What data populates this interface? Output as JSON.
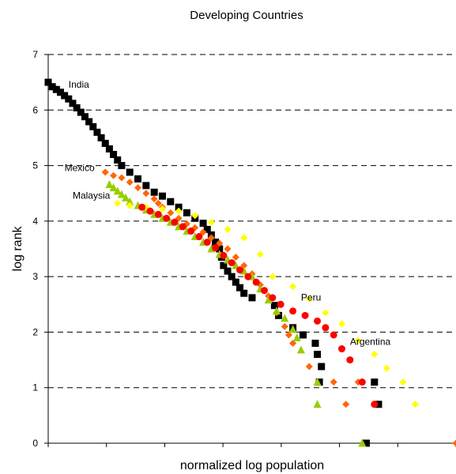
{
  "chart_data": {
    "type": "scatter",
    "title": "Developing Countries",
    "xlabel": "normalized log population",
    "ylabel": "log rank",
    "xlim": [
      0,
      1
    ],
    "ylim": [
      0,
      7
    ],
    "yticks": [
      "0",
      "1",
      "2",
      "3",
      "4",
      "5",
      "6",
      "7"
    ],
    "grid": "horizontal dashed",
    "legend": "none",
    "annotations": [
      {
        "text": "India",
        "x": 0.05,
        "y": 6.4
      },
      {
        "text": "Mexico",
        "x": 0.04,
        "y": 4.9
      },
      {
        "text": "Malaysia",
        "x": 0.06,
        "y": 4.4
      },
      {
        "text": "Peru",
        "x": 0.62,
        "y": 2.57
      },
      {
        "text": "Argentina",
        "x": 0.74,
        "y": 1.77
      }
    ],
    "series": [
      {
        "color": "#000000",
        "marker": "square",
        "points": [
          [
            0.0,
            6.5
          ],
          [
            0.01,
            6.42
          ],
          [
            0.02,
            6.37
          ],
          [
            0.03,
            6.32
          ],
          [
            0.04,
            6.26
          ],
          [
            0.05,
            6.2
          ],
          [
            0.06,
            6.12
          ],
          [
            0.07,
            6.04
          ],
          [
            0.08,
            5.96
          ],
          [
            0.09,
            5.88
          ],
          [
            0.1,
            5.79
          ],
          [
            0.11,
            5.7
          ],
          [
            0.12,
            5.6
          ],
          [
            0.13,
            5.5
          ],
          [
            0.14,
            5.4
          ],
          [
            0.15,
            5.3
          ],
          [
            0.16,
            5.2
          ],
          [
            0.17,
            5.1
          ],
          [
            0.18,
            5.0
          ],
          [
            0.2,
            4.88
          ],
          [
            0.22,
            4.76
          ],
          [
            0.24,
            4.64
          ],
          [
            0.26,
            4.52
          ],
          [
            0.28,
            4.45
          ],
          [
            0.3,
            4.35
          ],
          [
            0.32,
            4.25
          ],
          [
            0.34,
            4.15
          ],
          [
            0.36,
            4.05
          ],
          [
            0.38,
            3.96
          ],
          [
            0.39,
            3.85
          ],
          [
            0.4,
            3.75
          ],
          [
            0.41,
            3.62
          ],
          [
            0.42,
            3.5
          ],
          [
            0.425,
            3.35
          ],
          [
            0.43,
            3.2
          ],
          [
            0.44,
            3.1
          ],
          [
            0.45,
            3.0
          ],
          [
            0.46,
            2.9
          ],
          [
            0.47,
            2.8
          ],
          [
            0.48,
            2.7
          ],
          [
            0.5,
            2.62
          ],
          [
            0.6,
            2.08
          ],
          [
            0.625,
            1.95
          ],
          [
            0.655,
            1.8
          ],
          [
            0.66,
            1.6
          ],
          [
            0.67,
            1.38
          ],
          [
            0.665,
            1.1
          ],
          [
            0.78,
            0.0
          ],
          [
            0.8,
            1.1
          ],
          [
            0.81,
            0.7
          ],
          [
            0.565,
            2.3
          ],
          [
            0.555,
            2.48
          ]
        ]
      },
      {
        "color": "#ff6600",
        "marker": "diamond",
        "points": [
          [
            0.14,
            4.88
          ],
          [
            0.16,
            4.82
          ],
          [
            0.18,
            4.78
          ],
          [
            0.2,
            4.7
          ],
          [
            0.22,
            4.6
          ],
          [
            0.24,
            4.5
          ],
          [
            0.26,
            4.4
          ],
          [
            0.27,
            4.32
          ],
          [
            0.28,
            4.25
          ],
          [
            0.3,
            4.15
          ],
          [
            0.32,
            4.05
          ],
          [
            0.34,
            3.95
          ],
          [
            0.36,
            3.88
          ],
          [
            0.38,
            3.8
          ],
          [
            0.4,
            3.7
          ],
          [
            0.42,
            3.6
          ],
          [
            0.44,
            3.5
          ],
          [
            0.46,
            3.35
          ],
          [
            0.48,
            3.2
          ],
          [
            0.5,
            3.05
          ],
          [
            0.52,
            2.85
          ],
          [
            0.54,
            2.65
          ],
          [
            0.56,
            2.35
          ],
          [
            0.58,
            2.1
          ],
          [
            0.59,
            1.95
          ],
          [
            0.6,
            1.8
          ],
          [
            0.64,
            1.38
          ],
          [
            0.7,
            1.1
          ],
          [
            0.73,
            0.7
          ],
          [
            0.76,
            1.1
          ],
          [
            1.0,
            0.0
          ]
        ]
      },
      {
        "color": "#99cc00",
        "marker": "triangle",
        "points": [
          [
            0.15,
            4.66
          ],
          [
            0.16,
            4.6
          ],
          [
            0.17,
            4.54
          ],
          [
            0.18,
            4.48
          ],
          [
            0.19,
            4.42
          ],
          [
            0.2,
            4.35
          ],
          [
            0.22,
            4.28
          ],
          [
            0.24,
            4.2
          ],
          [
            0.26,
            4.12
          ],
          [
            0.28,
            4.05
          ],
          [
            0.3,
            3.98
          ],
          [
            0.32,
            3.9
          ],
          [
            0.34,
            3.82
          ],
          [
            0.36,
            3.72
          ],
          [
            0.38,
            3.62
          ],
          [
            0.4,
            3.5
          ],
          [
            0.42,
            3.4
          ],
          [
            0.44,
            3.3
          ],
          [
            0.46,
            3.2
          ],
          [
            0.48,
            3.1
          ],
          [
            0.5,
            3.0
          ],
          [
            0.52,
            2.78
          ],
          [
            0.54,
            2.58
          ],
          [
            0.56,
            2.38
          ],
          [
            0.58,
            2.25
          ],
          [
            0.6,
            2.05
          ],
          [
            0.61,
            1.9
          ],
          [
            0.62,
            1.68
          ],
          [
            0.66,
            1.1
          ],
          [
            0.66,
            0.7
          ],
          [
            0.77,
            0.0
          ]
        ]
      },
      {
        "color": "#ffff00",
        "marker": "diamond",
        "points": [
          [
            0.17,
            4.32
          ],
          [
            0.2,
            4.28
          ],
          [
            0.24,
            4.25
          ],
          [
            0.28,
            4.22
          ],
          [
            0.32,
            4.18
          ],
          [
            0.36,
            4.1
          ],
          [
            0.4,
            3.98
          ],
          [
            0.44,
            3.85
          ],
          [
            0.48,
            3.7
          ],
          [
            0.52,
            3.4
          ],
          [
            0.55,
            3.0
          ],
          [
            0.6,
            2.82
          ],
          [
            0.64,
            2.6
          ],
          [
            0.68,
            2.35
          ],
          [
            0.72,
            2.15
          ],
          [
            0.76,
            1.85
          ],
          [
            0.8,
            1.6
          ],
          [
            0.83,
            1.35
          ],
          [
            0.87,
            1.1
          ],
          [
            0.9,
            0.7
          ]
        ]
      },
      {
        "color": "#ff0000",
        "marker": "circle",
        "points": [
          [
            0.23,
            4.25
          ],
          [
            0.25,
            4.18
          ],
          [
            0.27,
            4.12
          ],
          [
            0.29,
            4.05
          ],
          [
            0.31,
            3.98
          ],
          [
            0.33,
            3.9
          ],
          [
            0.35,
            3.82
          ],
          [
            0.37,
            3.72
          ],
          [
            0.39,
            3.62
          ],
          [
            0.41,
            3.52
          ],
          [
            0.43,
            3.38
          ],
          [
            0.45,
            3.25
          ],
          [
            0.47,
            3.12
          ],
          [
            0.49,
            3.0
          ],
          [
            0.51,
            2.9
          ],
          [
            0.53,
            2.75
          ],
          [
            0.55,
            2.62
          ],
          [
            0.57,
            2.5
          ],
          [
            0.6,
            2.38
          ],
          [
            0.63,
            2.3
          ],
          [
            0.66,
            2.2
          ],
          [
            0.68,
            2.08
          ],
          [
            0.7,
            1.95
          ],
          [
            0.72,
            1.7
          ],
          [
            0.74,
            1.5
          ],
          [
            0.77,
            1.1
          ],
          [
            0.8,
            0.7
          ]
        ]
      }
    ]
  }
}
